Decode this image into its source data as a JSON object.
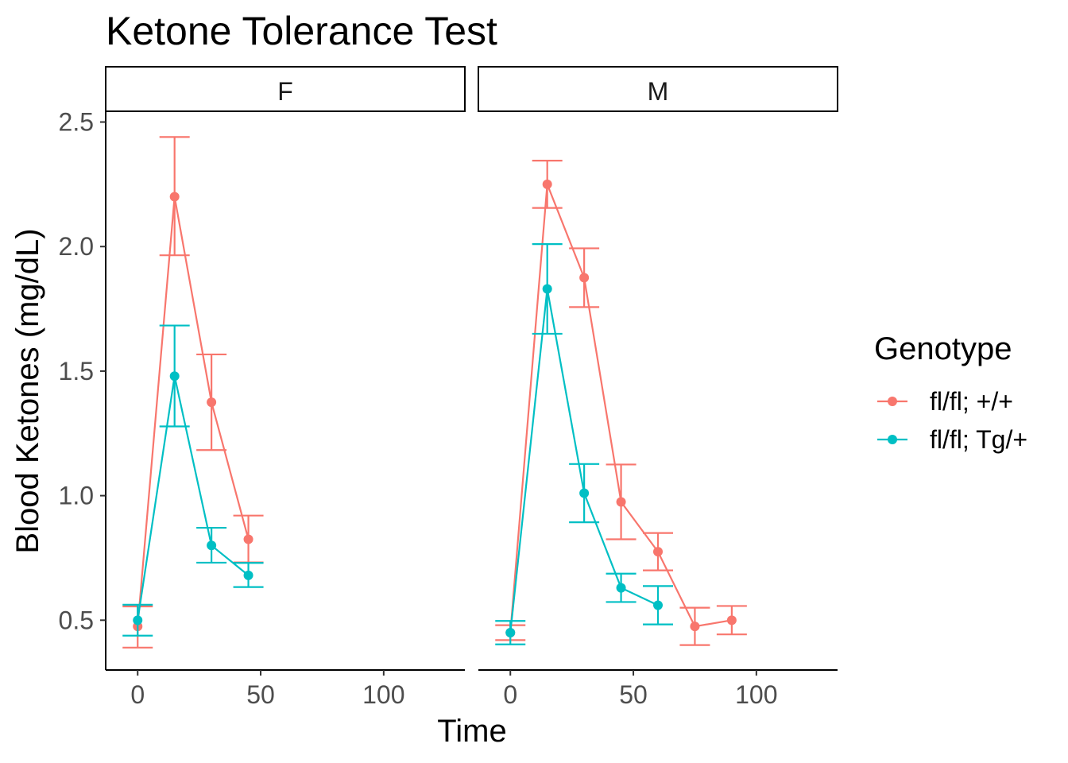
{
  "chart_data": {
    "type": "line",
    "title": "Ketone Tolerance Test",
    "xlabel": "Time",
    "ylabel": "Blood Ketones (mg/dL)",
    "xlim": [
      -13,
      133
    ],
    "ylim": [
      0.3,
      2.54
    ],
    "x_ticks": [
      "0",
      "50",
      "100"
    ],
    "y_ticks": [
      "0.5",
      "1.0",
      "1.5",
      "2.0",
      "2.5"
    ],
    "legend": {
      "title": "Genotype",
      "position": "right",
      "entries": [
        "fl/fl; +/+",
        "fl/fl; Tg/+"
      ]
    },
    "colors": {
      "fl/fl; +/+": "#F8766D",
      "fl/fl; Tg/+": "#00BFC4"
    },
    "facets": [
      {
        "label": "F",
        "series": [
          {
            "name": "fl/fl; +/+",
            "x": [
              0,
              15,
              30,
              45
            ],
            "y": [
              0.475,
              2.2,
              1.375,
              0.825
            ],
            "ymin": [
              0.39,
              1.965,
              1.183,
              0.732
            ],
            "ymax": [
              0.555,
              2.44,
              1.567,
              0.92
            ]
          },
          {
            "name": "fl/fl; Tg/+",
            "x": [
              0,
              15,
              30,
              45
            ],
            "y": [
              0.5,
              1.48,
              0.8,
              0.68
            ],
            "ymin": [
              0.438,
              1.278,
              0.731,
              0.633
            ],
            "ymax": [
              0.562,
              1.683,
              0.871,
              0.73
            ]
          }
        ]
      },
      {
        "label": "M",
        "series": [
          {
            "name": "fl/fl; +/+",
            "x": [
              0,
              15,
              30,
              45,
              60,
              75,
              90
            ],
            "y": [
              0.45,
              2.25,
              1.875,
              0.975,
              0.775,
              0.475,
              0.5
            ],
            "ymin": [
              0.42,
              2.155,
              1.757,
              0.825,
              0.7,
              0.4,
              0.443
            ],
            "ymax": [
              0.48,
              2.345,
              1.993,
              1.125,
              0.85,
              0.55,
              0.557
            ]
          },
          {
            "name": "fl/fl; Tg/+",
            "x": [
              0,
              15,
              30,
              45,
              60
            ],
            "y": [
              0.45,
              1.83,
              1.01,
              0.63,
              0.56
            ],
            "ymin": [
              0.403,
              1.65,
              0.893,
              0.573,
              0.483
            ],
            "ymax": [
              0.497,
              2.01,
              1.127,
              0.687,
              0.637
            ]
          }
        ]
      }
    ]
  }
}
